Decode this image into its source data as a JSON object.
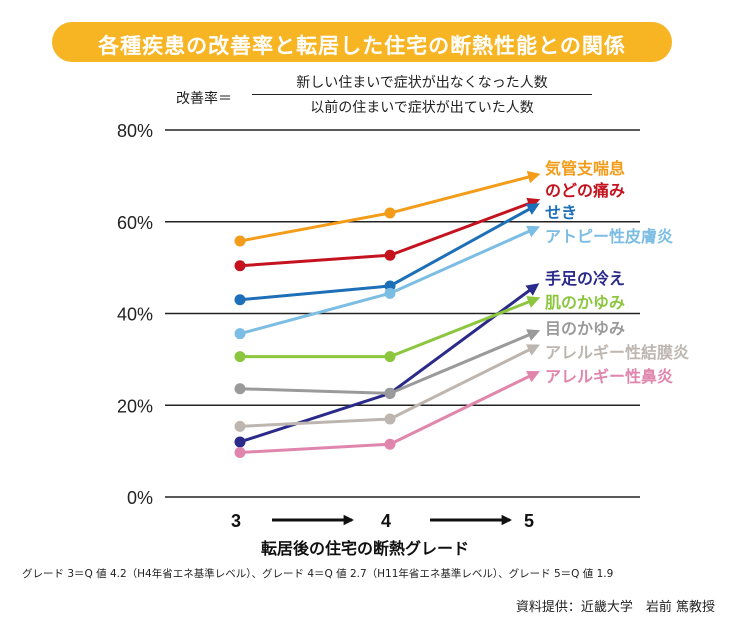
{
  "title": "各種疾患の改善率と転居した住宅の断熱性能との関係",
  "formula": {
    "label": "改善率＝",
    "numerator": "新しい住まいで症状が出なくなった人数",
    "denominator": "以前の住まいで症状が出ていた人数"
  },
  "footnote": "グレード 3＝Q 値 4.2（H4年省エネ基準レベル）、グレード 4＝Q 値 2.7（H11年省エネ基準レベル）、グレード 5＝Q 値 1.9",
  "source": "資料提供：近畿大学　岩前 篤教授",
  "colors": {
    "banner": "#f7b423",
    "grid": "#222222"
  },
  "chart_data": {
    "type": "line",
    "xlabel": "転居後の住宅の断熱グレード",
    "ylabel": "",
    "categories": [
      "3",
      "4",
      "5"
    ],
    "y_ticks": [
      "0%",
      "20%",
      "40%",
      "60%",
      "80%"
    ],
    "ylim": [
      0,
      80
    ],
    "grid": true,
    "legend": "right",
    "series": [
      {
        "name": "気管支喘息",
        "color": "#f39c1a",
        "values": [
          55.8,
          61.9,
          70.0
        ]
      },
      {
        "name": "のどの痛み",
        "color": "#c4121e",
        "values": [
          50.4,
          52.7,
          64.3
        ]
      },
      {
        "name": "せき",
        "color": "#1d6fb8",
        "values": [
          43.0,
          46.0,
          63.2
        ]
      },
      {
        "name": "アトピー性皮膚炎",
        "color": "#7cbde3",
        "values": [
          35.6,
          44.4,
          58.3
        ]
      },
      {
        "name": "手足の冷え",
        "color": "#2a2a8a",
        "values": [
          12.0,
          22.6,
          45.6
        ]
      },
      {
        "name": "肌のかゆみ",
        "color": "#8cc63f",
        "values": [
          30.6,
          30.6,
          42.9
        ]
      },
      {
        "name": "目のかゆみ",
        "color": "#9a9a9a",
        "values": [
          23.6,
          22.6,
          35.7
        ]
      },
      {
        "name": "アレルギー性結膜炎",
        "color": "#bdb6b0",
        "values": [
          15.4,
          17.0,
          32.5
        ]
      },
      {
        "name": "アレルギー性鼻炎",
        "color": "#e086ad",
        "values": [
          9.7,
          11.5,
          26.7
        ]
      }
    ],
    "label_colors": {
      "気管支喘息": "#f39c1a",
      "のどの痛み": "#c4121e",
      "せき": "#1d6fb8",
      "アトピー性皮膚炎": "#7cbde3",
      "手足の冷え": "#2a2a8a",
      "肌のかゆみ": "#8cc63f",
      "目のかゆみ": "#9a9a9a",
      "アレルギー性結膜炎": "#bdb6b0",
      "アレルギー性鼻炎": "#e086ad"
    }
  }
}
